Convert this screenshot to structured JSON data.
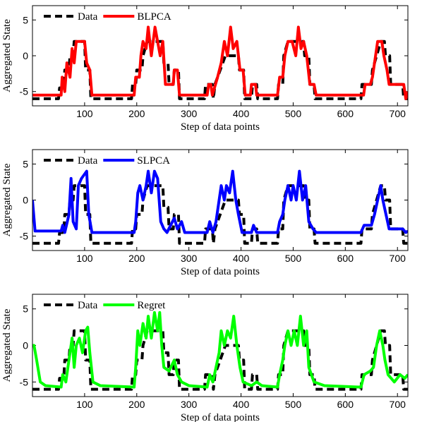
{
  "chart_data": [
    {
      "type": "line",
      "xlabel": "Step of data points",
      "ylabel": "Aggregated State",
      "xlim": [
        0,
        720
      ],
      "ylim": [
        -7,
        7
      ],
      "xticks": [
        100,
        200,
        300,
        400,
        500,
        600,
        700
      ],
      "yticks": [
        -5,
        0,
        5
      ],
      "series": [
        {
          "name": "Data",
          "color": "#000000",
          "linestyle": "dashed",
          "x": [
            0,
            50,
            52,
            60,
            62,
            70,
            72,
            78,
            80,
            100,
            102,
            110,
            112,
            190,
            192,
            198,
            200,
            210,
            212,
            220,
            250,
            252,
            260,
            262,
            270,
            272,
            280,
            282,
            330,
            332,
            345,
            347,
            350,
            360,
            370,
            395,
            397,
            405,
            407,
            420,
            422,
            430,
            432,
            470,
            472,
            480,
            482,
            490,
            520,
            522,
            530,
            532,
            540,
            542,
            630,
            632,
            650,
            652,
            660,
            668,
            675,
            677,
            685,
            687,
            710,
            712,
            720
          ],
          "values": [
            -6,
            -6,
            -4.5,
            -4.5,
            -2,
            -2,
            0,
            0,
            2,
            2,
            -2,
            -2,
            -6,
            -6,
            -4,
            -4,
            -2,
            -2,
            0,
            2,
            2,
            -1,
            -1,
            -4,
            -4,
            -2,
            -2,
            -6,
            -6,
            -4,
            -4,
            -6,
            -4,
            -2,
            0,
            0,
            -2,
            -2,
            -6,
            -6,
            -4,
            -4,
            -6,
            -6,
            -4,
            -4,
            0,
            2,
            2,
            0,
            0,
            -4,
            -4,
            -6,
            -6,
            -4,
            -4,
            -2,
            0,
            2,
            2,
            0,
            0,
            -4,
            -4,
            -6,
            -6
          ]
        },
        {
          "name": "BLPCA",
          "color": "#ff0000",
          "linestyle": "solid",
          "x": [
            0,
            55,
            57,
            62,
            66,
            72,
            76,
            80,
            84,
            100,
            104,
            110,
            114,
            195,
            198,
            205,
            208,
            212,
            218,
            222,
            228,
            235,
            240,
            245,
            250,
            255,
            270,
            272,
            278,
            282,
            335,
            338,
            342,
            345,
            355,
            362,
            368,
            374,
            380,
            385,
            392,
            398,
            404,
            408,
            418,
            420,
            428,
            430,
            470,
            474,
            480,
            484,
            490,
            498,
            505,
            510,
            515,
            520,
            526,
            532,
            540,
            544,
            635,
            638,
            648,
            652,
            658,
            662,
            670,
            674,
            680,
            684,
            712,
            716,
            720
          ],
          "values": [
            -5.5,
            -5.5,
            -3,
            -5,
            -1,
            -3,
            1,
            -1,
            2,
            2,
            -1,
            -2,
            -5.5,
            -5.5,
            -3,
            -3,
            0,
            2,
            1,
            4,
            0,
            4,
            2,
            0,
            2,
            -4,
            -4,
            -2,
            -2,
            -5.5,
            -5.5,
            -4,
            -4,
            -5.5,
            -3,
            -1,
            2,
            0,
            4,
            1,
            2,
            -2,
            -2,
            -5.5,
            -5.5,
            -4,
            -4,
            -5.5,
            -5.5,
            -3,
            -3,
            0,
            2,
            2,
            0,
            4,
            1,
            2,
            0,
            -4,
            -4,
            -5.5,
            -5.5,
            -4,
            -4,
            -3,
            0,
            2,
            2,
            0,
            -2,
            -4,
            -4,
            -6,
            -5
          ]
        }
      ]
    },
    {
      "type": "line",
      "xlabel": "Step of data points",
      "ylabel": "Aggregated State",
      "xlim": [
        0,
        720
      ],
      "ylim": [
        -7,
        7
      ],
      "xticks": [
        100,
        200,
        300,
        400,
        500,
        600,
        700
      ],
      "yticks": [
        -5,
        0,
        5
      ],
      "series": [
        {
          "name": "Data",
          "color": "#000000",
          "linestyle": "dashed",
          "x": [
            0,
            50,
            52,
            60,
            62,
            70,
            72,
            78,
            80,
            100,
            102,
            110,
            112,
            190,
            192,
            198,
            200,
            210,
            212,
            220,
            250,
            252,
            260,
            262,
            270,
            272,
            280,
            282,
            330,
            332,
            345,
            347,
            350,
            360,
            370,
            395,
            397,
            405,
            407,
            420,
            422,
            430,
            432,
            470,
            472,
            480,
            482,
            490,
            520,
            522,
            530,
            532,
            540,
            542,
            630,
            632,
            650,
            652,
            660,
            668,
            675,
            677,
            685,
            687,
            710,
            712,
            720
          ],
          "values": [
            -6,
            -6,
            -4.5,
            -4.5,
            -2,
            -2,
            0,
            0,
            2,
            2,
            -2,
            -2,
            -6,
            -6,
            -4,
            -4,
            -2,
            -2,
            0,
            2,
            2,
            -1,
            -1,
            -4,
            -4,
            -2,
            -2,
            -6,
            -6,
            -4,
            -4,
            -6,
            -4,
            -2,
            0,
            0,
            -2,
            -2,
            -6,
            -6,
            -4,
            -4,
            -6,
            -6,
            -4,
            -4,
            0,
            2,
            2,
            0,
            0,
            -4,
            -4,
            -6,
            -6,
            -4,
            -4,
            -2,
            0,
            2,
            2,
            0,
            0,
            -4,
            -4,
            -6,
            -6
          ]
        },
        {
          "name": "SLPCA",
          "color": "#0000ff",
          "linestyle": "solid",
          "x": [
            0,
            5,
            55,
            58,
            62,
            70,
            74,
            78,
            84,
            88,
            94,
            104,
            108,
            114,
            195,
            198,
            202,
            206,
            212,
            218,
            222,
            228,
            234,
            240,
            246,
            252,
            258,
            272,
            278,
            286,
            292,
            335,
            340,
            346,
            352,
            358,
            362,
            368,
            372,
            378,
            384,
            390,
            395,
            402,
            420,
            424,
            430,
            470,
            474,
            480,
            484,
            490,
            496,
            500,
            506,
            512,
            518,
            524,
            530,
            538,
            544,
            630,
            636,
            650,
            656,
            662,
            668,
            672,
            678,
            684,
            710,
            716,
            720
          ],
          "values": [
            0,
            -4.3,
            -4.3,
            -3.5,
            -4.5,
            -2,
            3,
            -3,
            -4,
            2,
            3,
            4,
            -2,
            -4.5,
            -4.5,
            -3,
            1,
            2,
            0,
            2,
            4,
            1,
            4,
            3,
            -3,
            -4,
            -4.5,
            -2.5,
            -4,
            -3,
            -4.5,
            -4.5,
            -3,
            -4.5,
            -3,
            0,
            2,
            0,
            2,
            1,
            4,
            0,
            -2,
            -4.5,
            -4.5,
            -3.5,
            -4.5,
            -4.5,
            -3,
            -2,
            0,
            2,
            0,
            2,
            0,
            4,
            0,
            2,
            -3,
            -4,
            -4.5,
            -4.5,
            -3.5,
            -3.5,
            -2,
            0,
            2,
            0,
            -2,
            -4,
            -4,
            -4.5,
            -4.3
          ]
        }
      ]
    },
    {
      "type": "line",
      "xlabel": "Step of data points",
      "ylabel": "Aggregated State",
      "xlim": [
        0,
        720
      ],
      "ylim": [
        -7,
        7
      ],
      "xticks": [
        100,
        200,
        300,
        400,
        500,
        600,
        700
      ],
      "yticks": [
        -5,
        0,
        5
      ],
      "series": [
        {
          "name": "Data",
          "color": "#000000",
          "linestyle": "dashed",
          "x": [
            0,
            50,
            52,
            60,
            62,
            70,
            72,
            78,
            80,
            100,
            102,
            110,
            112,
            190,
            192,
            198,
            200,
            210,
            212,
            220,
            250,
            252,
            260,
            262,
            270,
            272,
            280,
            282,
            330,
            332,
            345,
            347,
            350,
            360,
            370,
            395,
            397,
            405,
            407,
            420,
            422,
            430,
            432,
            470,
            472,
            480,
            482,
            490,
            520,
            522,
            530,
            532,
            540,
            542,
            630,
            632,
            650,
            652,
            660,
            668,
            675,
            677,
            685,
            687,
            710,
            712,
            720
          ],
          "values": [
            -6,
            -6,
            -4.5,
            -4.5,
            -2,
            -2,
            0,
            0,
            2,
            2,
            -2,
            -2,
            -6,
            -6,
            -4,
            -4,
            -2,
            -2,
            0,
            2,
            2,
            -1,
            -1,
            -4,
            -4,
            -2,
            -2,
            -6,
            -6,
            -4,
            -4,
            -6,
            -4,
            -2,
            0,
            0,
            -2,
            -2,
            -6,
            -6,
            -4,
            -4,
            -6,
            -6,
            -4,
            -4,
            0,
            2,
            2,
            0,
            0,
            -4,
            -4,
            -6,
            -6,
            -4,
            -4,
            -2,
            0,
            2,
            2,
            0,
            0,
            -4,
            -4,
            -6,
            -6
          ]
        },
        {
          "name": "Regret",
          "color": "#00ff00",
          "linestyle": "solid",
          "x": [
            0,
            3,
            8,
            15,
            25,
            55,
            58,
            64,
            68,
            72,
            76,
            80,
            84,
            90,
            96,
            102,
            106,
            110,
            116,
            130,
            195,
            198,
            202,
            206,
            212,
            218,
            222,
            228,
            234,
            240,
            244,
            248,
            252,
            262,
            272,
            278,
            286,
            300,
            335,
            340,
            346,
            352,
            358,
            362,
            368,
            374,
            380,
            386,
            392,
            398,
            404,
            420,
            430,
            440,
            470,
            474,
            480,
            484,
            490,
            496,
            502,
            508,
            514,
            520,
            526,
            530,
            540,
            560,
            630,
            636,
            648,
            654,
            660,
            666,
            672,
            676,
            682,
            694,
            705,
            714,
            720
          ],
          "values": [
            0,
            0,
            -2,
            -5,
            -5.5,
            -5.7,
            -4,
            -5,
            -3,
            -1,
            1,
            -3,
            0,
            1,
            -1,
            2,
            2.5,
            -1,
            -5,
            -5.5,
            -5.7,
            -3,
            2,
            0,
            3,
            1,
            4,
            1,
            4.5,
            2,
            4.5,
            0,
            -3,
            -3.5,
            -2,
            -4,
            -5,
            -5.5,
            -5.7,
            -4,
            -5,
            -3,
            -1,
            2,
            0,
            2,
            1,
            4,
            0,
            -3,
            -5,
            -5.5,
            -5,
            -5.5,
            -5.7,
            -4,
            -2,
            0,
            2,
            0,
            2,
            0,
            4,
            0,
            2,
            -3,
            -5,
            -5.5,
            -5.7,
            -4,
            -3.5,
            -3,
            0,
            2,
            0,
            -2,
            -4,
            -5,
            -4,
            -4.5,
            -4
          ]
        }
      ]
    }
  ]
}
